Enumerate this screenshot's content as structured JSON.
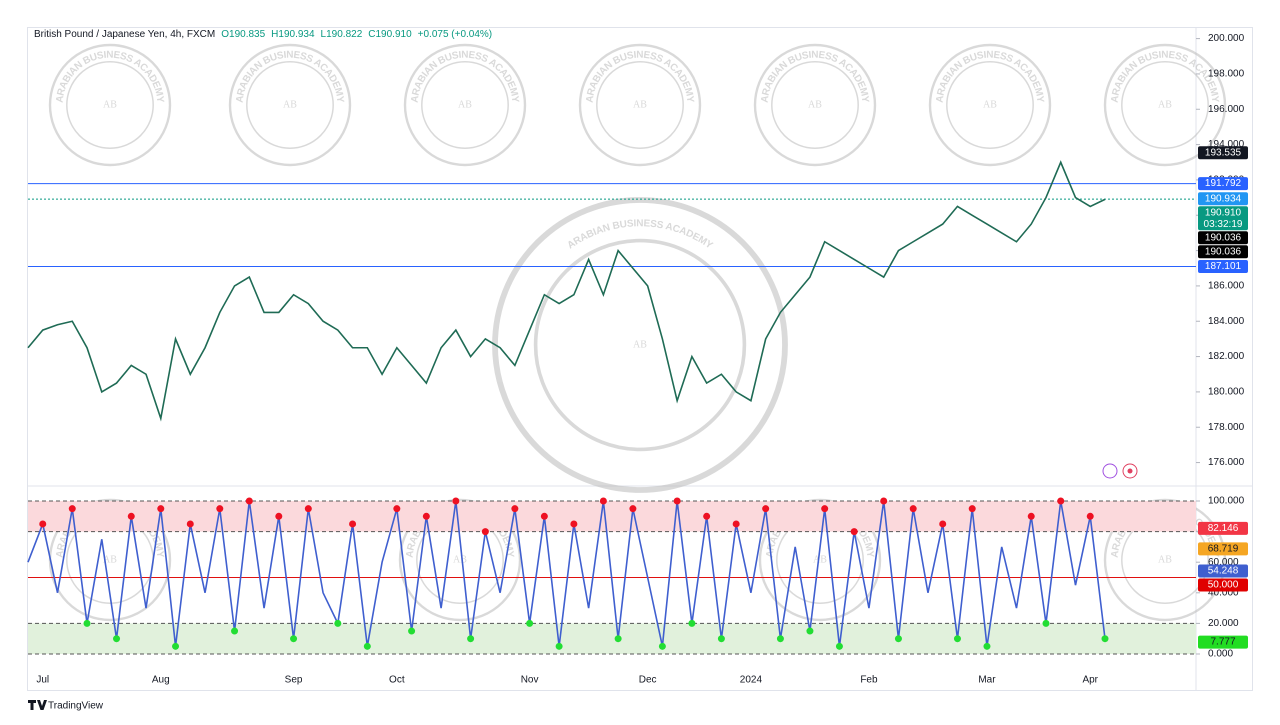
{
  "header": {
    "symbol": "British Pound / Japanese Yen, 4h, FXCM",
    "ohlc": [
      "O190.835",
      "H190.934",
      "L190.822",
      "C190.910"
    ],
    "change": "+0.075 (+0.04%)"
  },
  "watermark": {
    "name": "ARABIAN BUSINESS ACADEMY",
    "initials": "AB"
  },
  "footer": {
    "brand": "TradingView"
  },
  "chart_data": [
    {
      "type": "line",
      "color": "#1f6b55",
      "values": [
        182.5,
        183.5,
        183.8,
        184.0,
        182.5,
        180.0,
        180.5,
        181.5,
        181.0,
        178.5,
        183.0,
        181.0,
        182.5,
        184.5,
        186.0,
        186.5,
        184.5,
        184.5,
        185.5,
        185.0,
        184.0,
        183.5,
        182.5,
        182.5,
        181.0,
        182.5,
        181.5,
        180.5,
        182.5,
        183.5,
        182.0,
        183.0,
        182.5,
        181.5,
        183.5,
        185.5,
        185.0,
        185.5,
        187.5,
        185.5,
        188.0,
        187.0,
        186.0,
        183.0,
        179.5,
        182.0,
        180.5,
        181.0,
        180.0,
        179.5,
        183.0,
        184.5,
        185.5,
        186.5,
        188.5,
        188.0,
        187.5,
        187.0,
        186.5,
        188.0,
        188.5,
        189.0,
        189.5,
        190.5,
        190.0,
        189.5,
        189.0,
        188.5,
        189.5,
        191.0,
        193.0,
        191.0,
        190.5,
        190.9
      ],
      "ylim": [
        174.9,
        200.6
      ],
      "yticks": [
        {
          "value": 176,
          "label": "176.000"
        },
        {
          "value": 178,
          "label": "178.000"
        },
        {
          "value": 180,
          "label": "180.000"
        },
        {
          "value": 182,
          "label": "182.000"
        },
        {
          "value": 184,
          "label": "184.000"
        },
        {
          "value": 186,
          "label": "186.000"
        },
        {
          "value": 188,
          "label": "188.000"
        },
        {
          "value": 190,
          "label": "190.000"
        },
        {
          "value": 192,
          "label": "192.000"
        },
        {
          "value": 194,
          "label": "194.000"
        },
        {
          "value": 196,
          "label": "196.000"
        },
        {
          "value": 198,
          "label": "198.000"
        },
        {
          "value": 200,
          "label": "200.000"
        }
      ],
      "markers": [
        {
          "value": 193.535,
          "label": "193.535",
          "color": "#131722",
          "text_color": "#ffffff",
          "line": false
        },
        {
          "value": 191.792,
          "label": "191.792",
          "color": "#2962ff",
          "text_color": "#ffffff",
          "line": true
        },
        {
          "value": 190.934,
          "label": "190.934",
          "color": "#2196f3",
          "text_color": "#ffffff",
          "line": false
        },
        {
          "value": 190.91,
          "label": "190.910",
          "color": "#089981",
          "text_color": "#ffffff",
          "line": true,
          "countdown": "03:32:19"
        },
        {
          "value": 190.036,
          "label": "190.036",
          "color": "#000000",
          "text_color": "#ffffff",
          "line": false
        },
        {
          "value": 190.036,
          "label": "190.036",
          "color": "#000000",
          "text_color": "#ffffff",
          "line": false
        },
        {
          "value": 187.101,
          "label": "187.101",
          "color": "#2962ff",
          "text_color": "#ffffff",
          "line": true
        }
      ]
    },
    {
      "type": "line",
      "color": "#3f5fcf",
      "categories": [
        null,
        "Jul",
        null,
        null,
        null,
        null,
        null,
        null,
        null,
        "Aug",
        null,
        null,
        null,
        null,
        null,
        null,
        null,
        null,
        "Sep",
        null,
        null,
        null,
        null,
        null,
        null,
        "Oct",
        null,
        null,
        null,
        null,
        null,
        null,
        null,
        null,
        "Nov",
        null,
        null,
        null,
        null,
        null,
        null,
        null,
        "Dec",
        null,
        null,
        null,
        null,
        null,
        null,
        "2024",
        null,
        null,
        null,
        null,
        null,
        null,
        null,
        "Feb",
        null,
        null,
        null,
        null,
        null,
        null,
        null,
        "Mar",
        null,
        null,
        null,
        null,
        null,
        null,
        "Apr",
        null
      ],
      "values": [
        60,
        85,
        40,
        95,
        20,
        75,
        10,
        90,
        30,
        95,
        5,
        85,
        40,
        95,
        15,
        100,
        30,
        90,
        10,
        95,
        40,
        20,
        85,
        5,
        60,
        95,
        15,
        90,
        30,
        100,
        10,
        80,
        40,
        95,
        20,
        90,
        5,
        85,
        30,
        100,
        10,
        95,
        50,
        5,
        100,
        20,
        90,
        10,
        85,
        40,
        95,
        10,
        70,
        15,
        95,
        5,
        80,
        30,
        100,
        10,
        95,
        40,
        85,
        10,
        95,
        5,
        70,
        30,
        90,
        20,
        100,
        45,
        90,
        10
      ],
      "ylim": [
        -7.2,
        107.2
      ],
      "yticks": [
        {
          "value": 0,
          "label": "0.000"
        },
        {
          "value": 20,
          "label": "20.000"
        },
        {
          "value": 40,
          "label": "40.000"
        },
        {
          "value": 60,
          "label": "60.000"
        },
        {
          "value": 80,
          "label": "80.000"
        },
        {
          "value": 100,
          "label": "100.000"
        }
      ],
      "bands": [
        {
          "from": 80,
          "to": 100,
          "color": "#fbd9dc",
          "dot_color": "#ee1122"
        },
        {
          "from": 0,
          "to": 20,
          "color": "#e1f1dc",
          "dot_color": "#22dd33"
        }
      ],
      "midline": {
        "value": 50,
        "color": "#e01010"
      },
      "markers": [
        {
          "value": 82.146,
          "label": "82.146",
          "color": "#f23645",
          "text_color": "#ffffff"
        },
        {
          "value": 68.719,
          "label": "68.719",
          "color": "#f5a623",
          "text_color": "#131722"
        },
        {
          "value": 54.248,
          "label": "54.248",
          "color": "#3f5fcf",
          "text_color": "#ffffff"
        },
        {
          "value": 50,
          "label": "50.000",
          "color": "#e00000",
          "text_color": "#ffffff"
        },
        {
          "value": 7.777,
          "label": "7.777",
          "color": "#22dd22",
          "text_color": "#131722"
        }
      ]
    }
  ]
}
